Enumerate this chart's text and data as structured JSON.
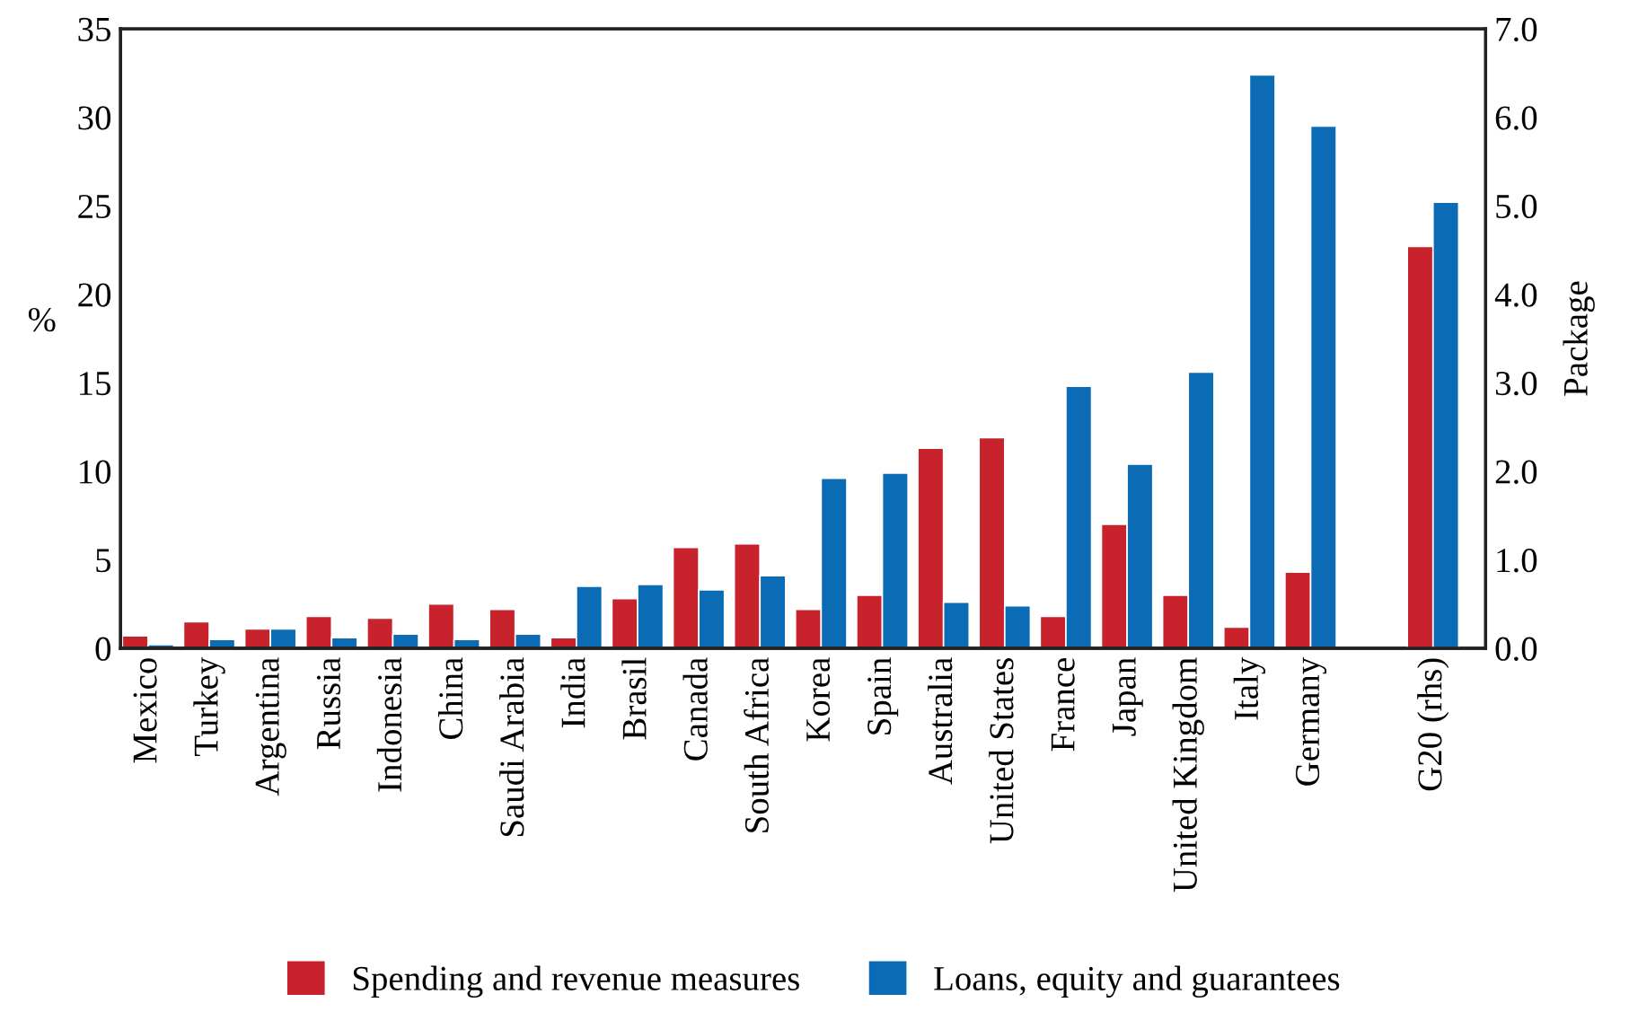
{
  "chart_data": {
    "type": "bar",
    "ylabel": "%",
    "y2label": "Package",
    "categories": [
      "Mexico",
      "Turkey",
      "Argentina",
      "Russia",
      "Indonesia",
      "China",
      "Saudi Arabia",
      "India",
      "Brasil",
      "Canada",
      "South Africa",
      "Korea",
      "Spain",
      "Australia",
      "United States",
      "France",
      "Japan",
      "United Kingdom",
      "Italy",
      "Germany",
      null,
      "G20 (rhs)"
    ],
    "series": [
      {
        "name": "Spending and revenue measures",
        "color": "#c8232c",
        "values": [
          0.7,
          1.5,
          1.1,
          1.8,
          1.7,
          2.5,
          2.2,
          0.6,
          2.8,
          5.7,
          5.9,
          2.2,
          3.0,
          11.3,
          11.9,
          1.8,
          7.0,
          3.0,
          1.2,
          4.3,
          null,
          null
        ]
      },
      {
        "name": "Loans, equity and guarantees",
        "color": "#0c6bb5",
        "values": [
          0.2,
          0.5,
          1.1,
          0.6,
          0.8,
          0.5,
          0.8,
          3.5,
          3.6,
          3.3,
          4.1,
          9.6,
          9.9,
          2.6,
          2.4,
          14.8,
          10.4,
          15.6,
          32.4,
          29.5,
          null,
          null
        ]
      },
      {
        "color": "#c8232c",
        "axis": "y2",
        "values": [
          null,
          null,
          null,
          null,
          null,
          null,
          null,
          null,
          null,
          null,
          null,
          null,
          null,
          null,
          null,
          null,
          null,
          null,
          null,
          null,
          null,
          4.54
        ]
      },
      {
        "color": "#0c6bb5",
        "axis": "y2",
        "values": [
          null,
          null,
          null,
          null,
          null,
          null,
          null,
          null,
          null,
          null,
          null,
          null,
          null,
          null,
          null,
          null,
          null,
          null,
          null,
          null,
          null,
          5.04
        ]
      }
    ],
    "ylim": [
      0,
      35
    ],
    "yticks": [
      0,
      5,
      10,
      15,
      20,
      25,
      30,
      35
    ],
    "y2lim": [
      0,
      7
    ],
    "y2ticks": [
      {
        "value": 0,
        "label": "0.0"
      },
      {
        "value": 1,
        "label": "1.0"
      },
      {
        "value": 2,
        "label": "2.0"
      },
      {
        "value": 3,
        "label": "3.0"
      },
      {
        "value": 4,
        "label": "4.0"
      },
      {
        "value": 5,
        "label": "5.0"
      },
      {
        "value": 6,
        "label": "6.0"
      },
      {
        "value": 7,
        "label": "7.0"
      }
    ],
    "grid": false,
    "legend": "bottom"
  }
}
